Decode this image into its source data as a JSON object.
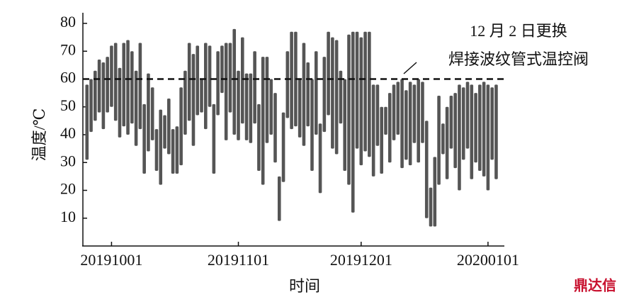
{
  "chart_data": {
    "type": "range-bar",
    "x_label": "时间",
    "y_label": "温度/℃",
    "x": [
      "20190925",
      "20190926",
      "20190927",
      "20190928",
      "20190929",
      "20190930",
      "20191001",
      "20191002",
      "20191003",
      "20191004",
      "20191005",
      "20191006",
      "20191007",
      "20191008",
      "20191009",
      "20191010",
      "20191011",
      "20191012",
      "20191013",
      "20191014",
      "20191015",
      "20191016",
      "20191017",
      "20191018",
      "20191019",
      "20191020",
      "20191021",
      "20191022",
      "20191023",
      "20191024",
      "20191025",
      "20191026",
      "20191027",
      "20191028",
      "20191029",
      "20191030",
      "20191031",
      "20191101",
      "20191102",
      "20191103",
      "20191104",
      "20191105",
      "20191106",
      "20191107",
      "20191108",
      "20191109",
      "20191110",
      "20191111",
      "20191112",
      "20191113",
      "20191114",
      "20191115",
      "20191116",
      "20191117",
      "20191118",
      "20191119",
      "20191120",
      "20191121",
      "20191122",
      "20191123",
      "20191124",
      "20191125",
      "20191126",
      "20191127",
      "20191128",
      "20191129",
      "20191130",
      "20191201",
      "20191202",
      "20191203",
      "20191204",
      "20191205",
      "20191206",
      "20191207",
      "20191208",
      "20191209",
      "20191210",
      "20191211",
      "20191212",
      "20191213",
      "20191214",
      "20191215",
      "20191216",
      "20191217",
      "20191218",
      "20191219",
      "20191220",
      "20191221",
      "20191222",
      "20191223",
      "20191224",
      "20191225",
      "20191226",
      "20191227",
      "20191228",
      "20191229",
      "20191230",
      "20191231",
      "20200101",
      "20200102",
      "20200103"
    ],
    "low": [
      31,
      41,
      45,
      48,
      42,
      48,
      50,
      45,
      39,
      43,
      40,
      44,
      36,
      42,
      26,
      34,
      38,
      27,
      22,
      35,
      33,
      26,
      26,
      29,
      40,
      45,
      36,
      47,
      48,
      42,
      50,
      26,
      47,
      55,
      38,
      48,
      40,
      38,
      44,
      38,
      37,
      44,
      27,
      22,
      37,
      40,
      30,
      9,
      23,
      46,
      42,
      43,
      39,
      36,
      43,
      27,
      40,
      19,
      41,
      47,
      35,
      33,
      44,
      27,
      22,
      12,
      35,
      29,
      34,
      32,
      25,
      36,
      26,
      40,
      30,
      38,
      40,
      28,
      31,
      29,
      37,
      30,
      37,
      10,
      7,
      7,
      22,
      33,
      24,
      35,
      28,
      20,
      31,
      35,
      24,
      30,
      27,
      25,
      20,
      31,
      24
    ],
    "high": [
      58,
      60,
      63,
      67,
      66,
      68,
      72,
      73,
      64,
      73,
      74,
      70,
      63,
      73,
      51,
      62,
      57,
      42,
      49,
      47,
      53,
      42,
      43,
      57,
      63,
      73,
      69,
      72,
      60,
      73,
      72,
      51,
      70,
      72,
      73,
      73,
      78,
      63,
      75,
      62,
      62,
      70,
      51,
      68,
      68,
      60,
      55,
      25,
      48,
      70,
      77,
      77,
      60,
      73,
      66,
      60,
      70,
      44,
      68,
      77,
      75,
      74,
      63,
      60,
      76,
      77,
      77,
      75,
      77,
      77,
      58,
      58,
      50,
      50,
      55,
      58,
      59,
      60,
      56,
      59,
      58,
      60,
      59,
      45,
      21,
      32,
      54,
      44,
      50,
      54,
      55,
      58,
      57,
      59,
      58,
      55,
      58,
      59,
      58,
      57,
      58
    ],
    "color": "#555555",
    "xlim": [
      "20190924",
      "20200105"
    ],
    "xticks": [
      "20191001",
      "20191101",
      "20191201",
      "20200101"
    ],
    "ylim": [
      0,
      80
    ],
    "yticks": [
      10,
      20,
      30,
      40,
      50,
      60,
      70,
      80
    ],
    "reference_line": 60,
    "annotation": [
      "12 月 2 日更换",
      "焊接波纹管式温控阀"
    ]
  },
  "watermark": "鼎达信"
}
